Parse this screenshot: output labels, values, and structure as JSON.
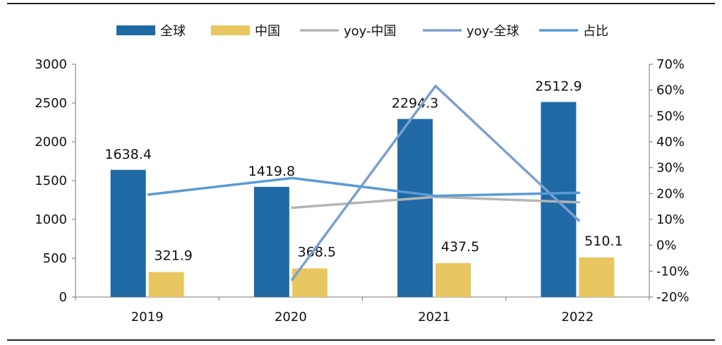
{
  "chart_data": {
    "type": "bar",
    "categories": [
      "2019",
      "2020",
      "2021",
      "2022"
    ],
    "series": [
      {
        "name": "全球",
        "type": "bar",
        "axis": "left",
        "color": "#1f6aa5",
        "values": [
          1638.4,
          1419.8,
          2294.3,
          2512.9
        ],
        "labels": [
          "1638.4",
          "1419.8",
          "2294.3",
          "2512.9"
        ]
      },
      {
        "name": "中国",
        "type": "bar",
        "axis": "left",
        "color": "#e8c760",
        "values": [
          321.9,
          368.5,
          437.5,
          510.1
        ],
        "labels": [
          "321.9",
          "368.5",
          "437.5",
          "510.1"
        ]
      },
      {
        "name": "yoy-中国",
        "type": "line",
        "axis": "right",
        "color": "#b5b5b5",
        "values": [
          null,
          14.5,
          18.7,
          16.6
        ]
      },
      {
        "name": "yoy-全球",
        "type": "line",
        "axis": "right",
        "color": "#7d9fcf",
        "values": [
          null,
          -13.3,
          61.6,
          9.5
        ]
      },
      {
        "name": "占比",
        "type": "line",
        "axis": "right",
        "color": "#5b9bd5",
        "values": [
          19.6,
          26.0,
          19.1,
          20.3
        ]
      }
    ],
    "y_left": {
      "min": 0,
      "max": 3000,
      "ticks": [
        "0",
        "500",
        "1000",
        "1500",
        "2000",
        "2500",
        "3000"
      ]
    },
    "y_right": {
      "min": -20,
      "max": 70,
      "unit": "%",
      "ticks": [
        "-20%",
        "-10%",
        "0%",
        "10%",
        "20%",
        "30%",
        "40%",
        "50%",
        "60%",
        "70%"
      ]
    },
    "legend_position": "top",
    "grid": false
  }
}
